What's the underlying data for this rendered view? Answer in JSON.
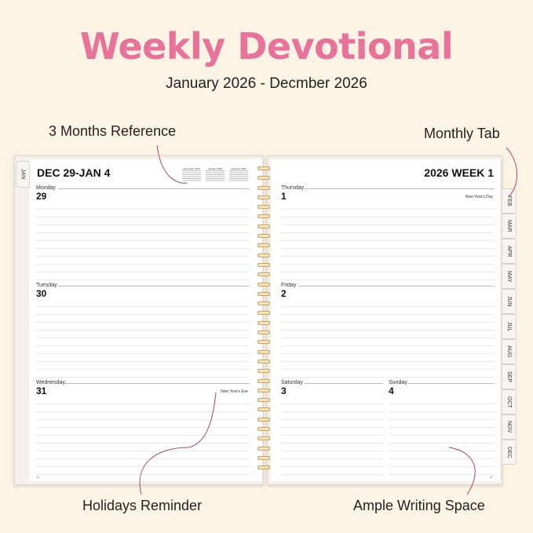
{
  "title": "Weekly Devotional",
  "subtitle": "January 2026 - Decmber 2026",
  "callouts": {
    "reference": "3 Months Reference",
    "monthly_tab": "Monthly Tab",
    "holidays": "Holidays Reminder",
    "writing_space": "Ample Writing Space"
  },
  "left_page": {
    "header": "DEC 29-JAN 4",
    "side_tab": "JAN",
    "mini_calendars": [
      "December 2025",
      "January 2026",
      "February 2026"
    ],
    "days": [
      {
        "name": "Monday",
        "num": "29",
        "holiday": ""
      },
      {
        "name": "Tuesday",
        "num": "30",
        "holiday": ""
      },
      {
        "name": "Wednesday",
        "num": "31",
        "holiday": "New Year's Eve"
      }
    ],
    "page_number": "14"
  },
  "right_page": {
    "header": "2026 WEEK 1",
    "days": [
      {
        "name": "Thursday",
        "num": "1",
        "holiday": "New Year's Day"
      },
      {
        "name": "Friday",
        "num": "2",
        "holiday": ""
      },
      {
        "name": "Saturday",
        "num": "3",
        "holiday": ""
      },
      {
        "name": "Sunday",
        "num": "4",
        "holiday": ""
      }
    ],
    "page_number": "15",
    "tabs": [
      "FEB",
      "MAR",
      "APR",
      "MAY",
      "JUN",
      "JUL",
      "AUG",
      "SEP",
      "OCT",
      "NOV",
      "DEC"
    ]
  },
  "colors": {
    "accent": "#e8729a",
    "arrow": "#a84468",
    "background": "#fbf3e4",
    "spiral": "#c9a45c"
  }
}
